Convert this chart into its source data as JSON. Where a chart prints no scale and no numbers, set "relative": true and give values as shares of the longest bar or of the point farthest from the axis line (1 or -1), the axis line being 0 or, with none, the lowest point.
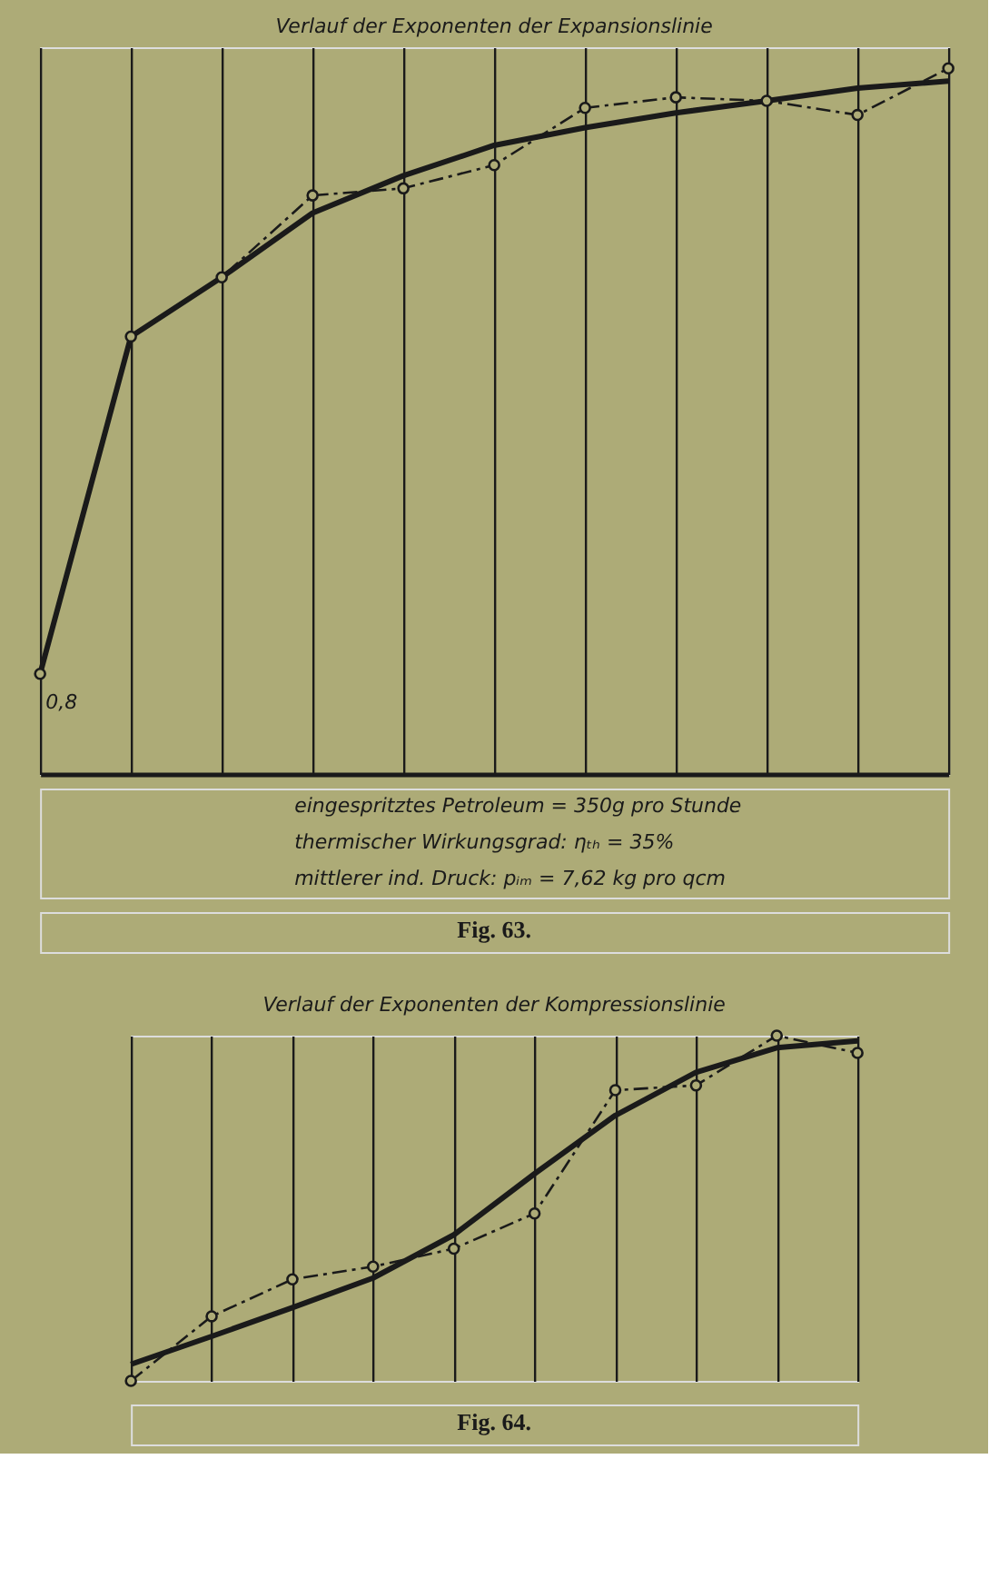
{
  "chart_data": [
    {
      "type": "line",
      "title": "Verlauf der Exponenten der Expansionslinie",
      "relative": true,
      "grid": "x",
      "tick_labels": false,
      "categories": [
        null,
        null,
        null,
        null,
        null,
        null,
        null,
        null,
        null,
        null,
        null
      ],
      "series": [
        {
          "color": "#1a1a1a",
          "line_style": "dashed",
          "marker": "circle",
          "values": [
            0.142,
            0.62,
            0.704,
            0.82,
            0.83,
            0.863,
            0.944,
            0.959,
            0.954,
            0.934,
            1.0
          ]
        },
        {
          "color": "#1a1a1a",
          "line_style": "solid",
          "marker": "none",
          "values": [
            0.142,
            0.62,
            0.704,
            0.795,
            0.848,
            0.891,
            0.916,
            0.937,
            0.954,
            0.972,
            0.982
          ]
        }
      ],
      "annotations": [
        "0,8",
        "eingespritztes Petroleum = 350g pro Stunde",
        "thermischer Wirkungsgrad: ηₜₕ = 35%",
        "mittlerer ind. Druck: pᵢₘ = 7,62 kg pro qcm",
        "Fig. 63."
      ]
    },
    {
      "type": "line",
      "title": "Verlauf der Exponenten der Kompressionslinie",
      "relative": true,
      "grid": "x",
      "tick_labels": false,
      "categories": [
        null,
        null,
        null,
        null,
        null,
        null,
        null,
        null,
        null,
        null
      ],
      "series": [
        {
          "color": "#1a1a1a",
          "line_style": "dashed",
          "marker": "circle",
          "values": [
            0,
            0.187,
            0.294,
            0.331,
            0.383,
            0.485,
            0.842,
            0.856,
            1.0,
            0.95
          ]
        },
        {
          "color": "#1a1a1a",
          "line_style": "solid",
          "marker": "none",
          "values": [
            0.048,
            0.129,
            0.212,
            0.298,
            0.423,
            0.6,
            0.769,
            0.894,
            0.965,
            0.985
          ]
        }
      ],
      "annotations": [
        "Fig. 64."
      ]
    }
  ]
}
